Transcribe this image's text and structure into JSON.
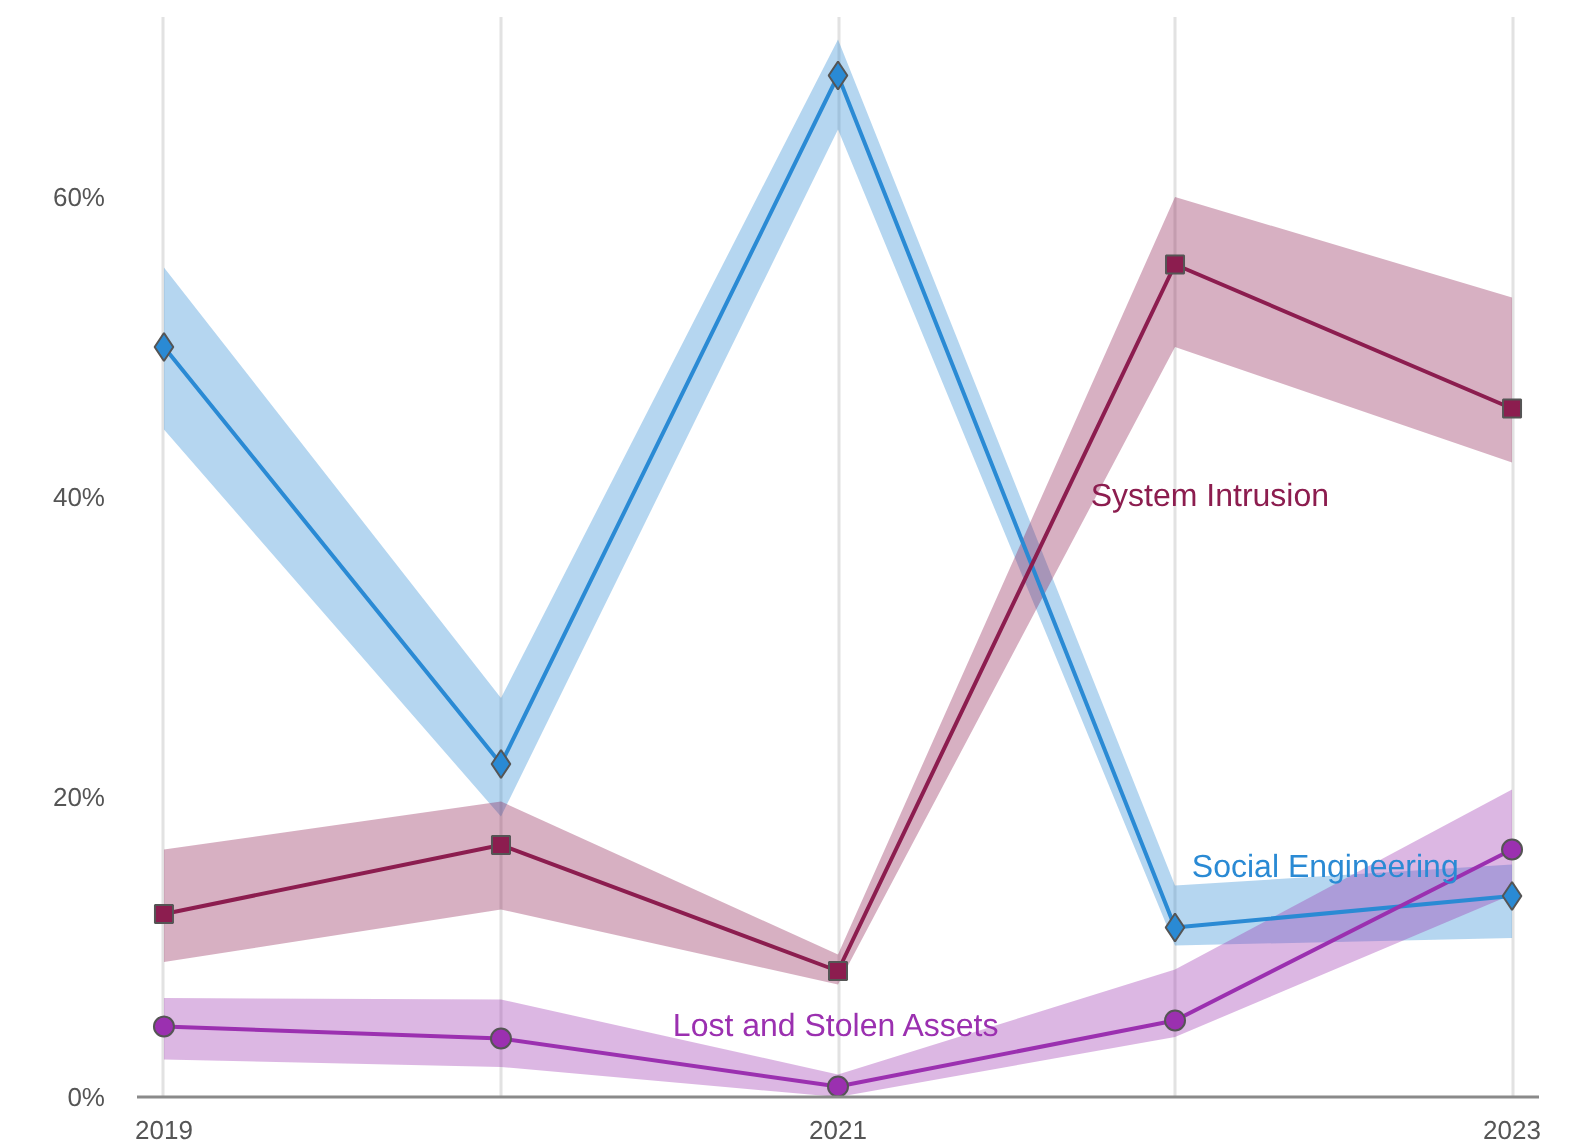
{
  "chart_data": {
    "type": "line",
    "x": [
      2019,
      2020,
      2021,
      2022,
      2023
    ],
    "xlim": [
      2018.92,
      2023.08
    ],
    "xticks": [
      2019,
      {
        "value": 2020,
        "label": null
      },
      2021,
      {
        "value": 2022,
        "label": null
      },
      2023
    ],
    "ylim": [
      0,
      72
    ],
    "yticks": [
      {
        "value": 0,
        "label": "0%"
      },
      {
        "value": 20,
        "label": "20%"
      },
      {
        "value": 40,
        "label": "40%"
      },
      {
        "value": 60,
        "label": "60%"
      }
    ],
    "grid": "x",
    "legend": false,
    "series": [
      {
        "name": "Social Engineering",
        "color": "#2a8ad4",
        "marker": "diamond",
        "values": [
          50,
          22.2,
          68.1,
          11.3,
          13.4
        ],
        "lower": [
          44.5,
          18.7,
          64.5,
          10.1,
          10.6
        ],
        "upper": [
          55.3,
          26.6,
          70.5,
          14.1,
          15.5
        ]
      },
      {
        "name": "System Intrusion",
        "color": "#8c1d4f",
        "marker": "square",
        "values": [
          12.2,
          16.8,
          8.4,
          55.5,
          45.9
        ],
        "lower": [
          9,
          12.5,
          7.5,
          50,
          42.3
        ],
        "upper": [
          16.5,
          19.7,
          9.5,
          60,
          53.3
        ]
      },
      {
        "name": "Lost and Stolen Assets",
        "color": "#9b30b0",
        "marker": "circle",
        "values": [
          4.7,
          3.9,
          0.7,
          5.1,
          16.5
        ],
        "lower": [
          2.5,
          2,
          0,
          4,
          13.5
        ],
        "upper": [
          6.6,
          6.5,
          1.5,
          8.5,
          20.5
        ]
      }
    ]
  }
}
